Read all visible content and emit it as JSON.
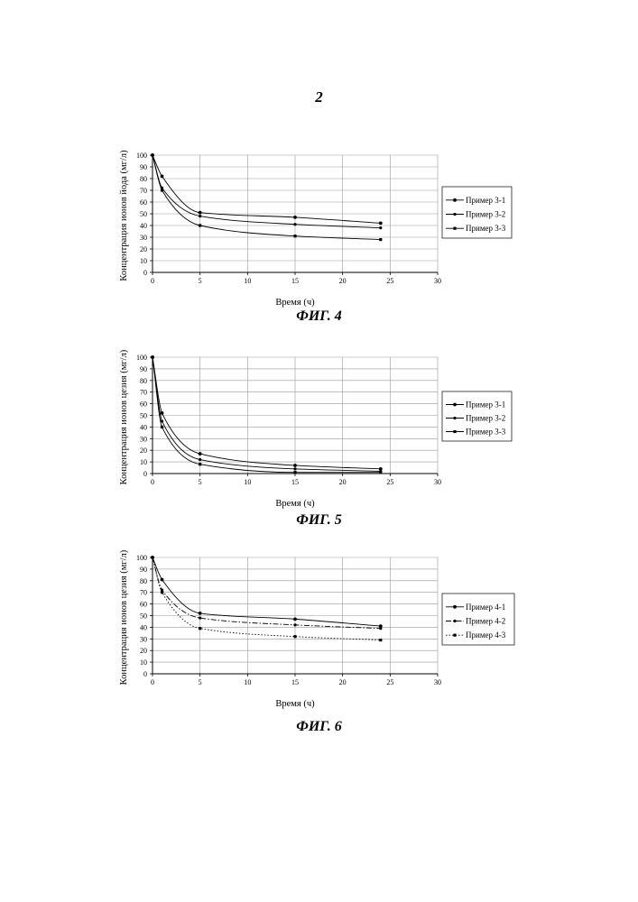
{
  "page_number": "2",
  "chart_data": [
    {
      "type": "line",
      "caption": "ФИГ. 4",
      "xlabel": "Время (ч)",
      "ylabel": "Концентрация ионов йода (мг/л)",
      "xlim": [
        0,
        30
      ],
      "ylim": [
        0,
        100
      ],
      "xticks": [
        "0",
        "5",
        "10",
        "15",
        "20",
        "25",
        "30"
      ],
      "yticks": [
        "0",
        "10",
        "20",
        "30",
        "40",
        "50",
        "60",
        "70",
        "80",
        "90",
        "100"
      ],
      "grid": true,
      "legend_position": "right",
      "series": [
        {
          "name": "Пример 3-1",
          "style": "solid",
          "x": [
            0,
            1,
            5,
            15,
            24
          ],
          "y": [
            100,
            82,
            51,
            47,
            42
          ]
        },
        {
          "name": "Пример 3-2",
          "style": "solid",
          "x": [
            0,
            1,
            5,
            15,
            24
          ],
          "y": [
            100,
            72,
            48,
            41,
            38
          ]
        },
        {
          "name": "Пример 3-3",
          "style": "solid",
          "x": [
            0,
            1,
            5,
            15,
            24
          ],
          "y": [
            100,
            70,
            40,
            31,
            28
          ]
        }
      ]
    },
    {
      "type": "line",
      "caption": "ФИГ. 5",
      "xlabel": "Время (ч)",
      "ylabel": "Концентрация ионов цезия (мг/л)",
      "xlim": [
        0,
        30
      ],
      "ylim": [
        0,
        100
      ],
      "xticks": [
        "0",
        "5",
        "10",
        "15",
        "20",
        "25",
        "30"
      ],
      "yticks": [
        "0",
        "10",
        "20",
        "30",
        "40",
        "50",
        "60",
        "70",
        "80",
        "90",
        "100"
      ],
      "grid": true,
      "legend_position": "right",
      "series": [
        {
          "name": "Пример 3-1",
          "style": "solid",
          "x": [
            0,
            1,
            5,
            15,
            24
          ],
          "y": [
            100,
            52,
            17,
            7,
            4
          ]
        },
        {
          "name": "Пример 3-2",
          "style": "solid",
          "x": [
            0,
            1,
            5,
            15,
            24
          ],
          "y": [
            100,
            45,
            12,
            4,
            2
          ]
        },
        {
          "name": "Пример 3-3",
          "style": "solid",
          "x": [
            0,
            1,
            5,
            15,
            24
          ],
          "y": [
            100,
            40,
            8,
            1,
            1
          ]
        }
      ]
    },
    {
      "type": "line",
      "caption": "ФИГ. 6",
      "xlabel": "Время (ч)",
      "ylabel": "Концентрация ионов цезия (мг/л)",
      "xlim": [
        0,
        30
      ],
      "ylim": [
        0,
        100
      ],
      "xticks": [
        "0",
        "5",
        "10",
        "15",
        "20",
        "25",
        "30"
      ],
      "yticks": [
        "0",
        "10",
        "20",
        "30",
        "40",
        "50",
        "60",
        "70",
        "80",
        "90",
        "100"
      ],
      "grid": true,
      "legend_position": "right",
      "series": [
        {
          "name": "Пример 4-1",
          "style": "solid",
          "x": [
            0,
            1,
            5,
            15,
            24
          ],
          "y": [
            100,
            81,
            52,
            47,
            41
          ]
        },
        {
          "name": "Пример 4-2",
          "style": "dashdot",
          "x": [
            0,
            1,
            5,
            15,
            24
          ],
          "y": [
            100,
            72,
            48,
            42,
            39
          ]
        },
        {
          "name": "Пример 4-3",
          "style": "dotted",
          "x": [
            0,
            1,
            5,
            15,
            24
          ],
          "y": [
            100,
            70,
            39,
            32,
            29
          ]
        }
      ]
    }
  ]
}
